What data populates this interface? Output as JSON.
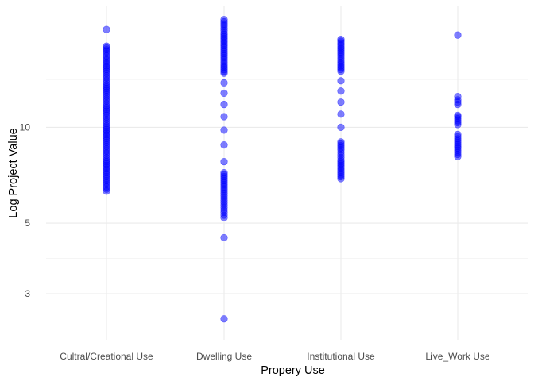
{
  "chart_data": {
    "type": "scatter",
    "xlabel": "Propery Use",
    "ylabel": "Log Project Value",
    "categories": [
      "Cultral/Creational Use",
      "Dwelling Use",
      "Institutional Use",
      "Live_Work Use"
    ],
    "y_scale": "log",
    "y_ticks": [
      3,
      5,
      10
    ],
    "y_range": [
      2.15,
      24
    ],
    "grid": true,
    "legend": "none",
    "point_color": "#0000ff",
    "point_opacity": 0.5,
    "points": [
      {
        "category": "Cultral/Creational Use",
        "values": [
          20.3,
          18.0,
          17.3,
          16.5,
          15.8,
          15.0,
          14.3,
          13.6,
          12.9,
          12.3,
          11.7,
          11.1,
          10.6,
          10.1,
          9.6,
          9.1,
          8.7,
          8.3,
          7.9,
          7.6,
          7.3,
          7.0,
          6.7,
          6.3
        ]
      },
      {
        "category": "Dwelling Use",
        "values": [
          21.8,
          20.8,
          19.8,
          18.8,
          17.8,
          16.8,
          15.8,
          14.8,
          13.8,
          12.8,
          11.8,
          10.8,
          9.8,
          8.8,
          7.8,
          7.2,
          6.8,
          6.6,
          6.4,
          6.2,
          6.0,
          5.8,
          5.6,
          5.4,
          5.2,
          4.5,
          2.5
        ]
      },
      {
        "category": "Institutional Use",
        "values": [
          18.9,
          18.4,
          17.9,
          17.0,
          16.0,
          15.0,
          14.0,
          13.0,
          12.0,
          11.0,
          10.0,
          9.0,
          8.5,
          8.2,
          7.9,
          7.5,
          7.3,
          6.9
        ]
      },
      {
        "category": "Live_Work Use",
        "values": [
          19.5,
          12.5,
          12.2,
          11.8,
          10.9,
          10.8,
          10.2,
          9.5,
          9.2,
          8.7,
          8.6,
          8.1
        ]
      }
    ]
  }
}
